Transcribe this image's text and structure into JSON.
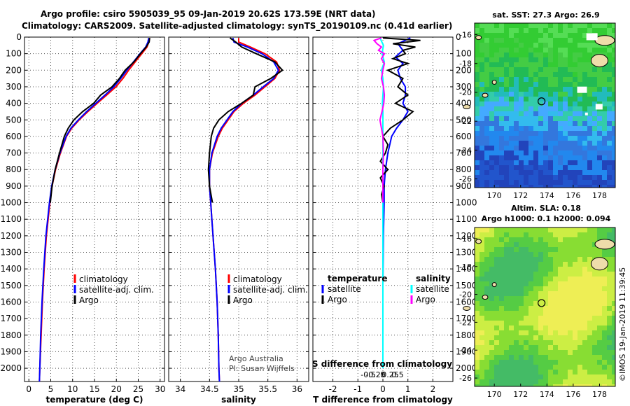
{
  "header": {
    "line1": "Argo profile: csiro 5905039_95 09-Jan-2019 20.62S 173.59E (NRT data)",
    "line2": "Climatology: CARS2009. Satellite-adjusted climatology: synTS_20190109.nc (0.41d earlier)"
  },
  "chart_data": [
    {
      "type": "line",
      "panel": "temperature",
      "xlabel": "temperature (deg C)",
      "ylabel": "depth",
      "xlim": [
        -1,
        31
      ],
      "ylim": [
        2080,
        0
      ],
      "xticks": [
        0,
        5,
        10,
        15,
        20,
        25,
        30
      ],
      "yticks": [
        0,
        100,
        200,
        300,
        400,
        500,
        600,
        700,
        800,
        900,
        1000,
        1100,
        1200,
        1300,
        1400,
        1500,
        1600,
        1700,
        1800,
        1900,
        2000
      ],
      "legend": "lower-right",
      "series": [
        {
          "name": "climatology",
          "color": "#ff0000",
          "depth": [
            5,
            30,
            60,
            100,
            150,
            200,
            250,
            300,
            350,
            400,
            450,
            500,
            550,
            600,
            700,
            800,
            900,
            1000,
            1200,
            1400,
            1600,
            1800,
            2000,
            2080
          ],
          "values": [
            27.6,
            27.4,
            27.0,
            25.8,
            24.3,
            22.8,
            21.5,
            19.9,
            17.8,
            15.6,
            13.5,
            11.5,
            9.8,
            8.6,
            7.2,
            6.1,
            5.3,
            4.8,
            4.0,
            3.5,
            3.1,
            2.8,
            2.5,
            2.4
          ]
        },
        {
          "name": "satellite-adj. clim.",
          "color": "#0000ff",
          "depth": [
            5,
            30,
            60,
            100,
            150,
            200,
            250,
            300,
            350,
            400,
            450,
            500,
            550,
            600,
            700,
            800,
            900,
            1000,
            1200,
            1400,
            1600,
            1800,
            2000,
            2080
          ],
          "values": [
            27.4,
            27.2,
            26.7,
            25.4,
            23.9,
            22.4,
            21.0,
            19.4,
            17.4,
            15.3,
            13.2,
            11.3,
            9.6,
            8.5,
            7.1,
            6.0,
            5.2,
            4.7,
            3.9,
            3.4,
            3.0,
            2.7,
            2.5,
            2.4
          ]
        },
        {
          "name": "Argo",
          "color": "#000000",
          "depth": [
            5,
            30,
            60,
            100,
            150,
            200,
            250,
            300,
            350,
            400,
            450,
            500,
            550,
            600,
            700,
            800,
            900,
            1000
          ],
          "values": [
            27.6,
            27.5,
            26.8,
            25.5,
            24.0,
            22.0,
            20.7,
            19.0,
            16.4,
            14.8,
            12.3,
            10.3,
            9.0,
            8.1,
            7.0,
            6.0,
            5.3,
            4.9
          ]
        }
      ],
      "legend_entries": [
        "climatology",
        "satellite-adj. clim.",
        "Argo"
      ]
    },
    {
      "type": "line",
      "panel": "salinity",
      "xlabel": "salinity",
      "xlim": [
        33.8,
        36.2
      ],
      "ylim": [
        2080,
        0
      ],
      "xticks": [
        34,
        34.5,
        35,
        35.5,
        36
      ],
      "xticklabels": [
        "34",
        "34.5",
        "35",
        "35.5",
        "36"
      ],
      "legend": "lower-right",
      "series": [
        {
          "name": "climatology",
          "color": "#ff0000",
          "depth": [
            5,
            30,
            60,
            100,
            150,
            200,
            250,
            300,
            350,
            400,
            450,
            500,
            550,
            600,
            700,
            800,
            900,
            1000,
            1200,
            1400,
            1600,
            1800,
            2000,
            2080
          ],
          "values": [
            35.0,
            35.0,
            35.2,
            35.45,
            35.65,
            35.7,
            35.62,
            35.45,
            35.28,
            35.08,
            34.92,
            34.82,
            34.72,
            34.65,
            34.55,
            34.5,
            34.5,
            34.52,
            34.56,
            34.6,
            34.63,
            34.65,
            34.66,
            34.67
          ]
        },
        {
          "name": "satellite-adj. clim.",
          "color": "#0000ff",
          "depth": [
            5,
            30,
            60,
            100,
            150,
            200,
            250,
            300,
            350,
            400,
            450,
            500,
            550,
            600,
            700,
            800,
            900,
            1000,
            1200,
            1400,
            1600,
            1800,
            2000,
            2080
          ],
          "values": [
            34.9,
            34.92,
            35.15,
            35.4,
            35.6,
            35.68,
            35.6,
            35.42,
            35.25,
            35.05,
            34.9,
            34.8,
            34.7,
            34.63,
            34.54,
            34.5,
            34.5,
            34.52,
            34.56,
            34.6,
            34.63,
            34.65,
            34.66,
            34.67
          ]
        },
        {
          "name": "Argo",
          "color": "#000000",
          "depth": [
            5,
            30,
            60,
            100,
            150,
            200,
            250,
            300,
            350,
            400,
            450,
            500,
            550,
            600,
            700,
            800,
            900,
            1000
          ],
          "values": [
            34.85,
            34.95,
            35.05,
            35.3,
            35.62,
            35.75,
            35.55,
            35.28,
            35.25,
            35.05,
            34.82,
            34.66,
            34.57,
            34.53,
            34.5,
            34.48,
            34.5,
            34.55
          ]
        }
      ],
      "legend_entries": [
        "climatology",
        "satellite-adj. clim.",
        "Argo"
      ],
      "credit": [
        "Argo Australia",
        "PI: Susan Wijffels"
      ]
    },
    {
      "type": "line",
      "panel": "differences",
      "xlabel": "T difference from climatology",
      "xlabel_top": "S difference from climatology",
      "xlim": [
        -2.8,
        2.8
      ],
      "ylim": [
        2080,
        0
      ],
      "xticks": [
        -2,
        -1,
        0,
        1,
        2
      ],
      "xticklabels": [
        "-2",
        "-1",
        "0",
        "1",
        "2"
      ],
      "sticks": [
        -0.5,
        -0.25,
        0,
        0.25,
        0.5
      ],
      "sticklabels": [
        "-0.5",
        "-0.25",
        "0",
        "0.25",
        "0.5"
      ],
      "legend_temperature_title": "temperature",
      "legend_salinity_title": "salinity",
      "series": [
        {
          "name": "T satellite",
          "group": "temperature",
          "color": "#0000ff",
          "depth": [
            5,
            40,
            80,
            120,
            160,
            200,
            250,
            300,
            350,
            400,
            450,
            500,
            550,
            600,
            700,
            800,
            900,
            1000,
            1200,
            1500,
            2000
          ],
          "values": [
            1.1,
            0.6,
            0.8,
            0.5,
            0.8,
            0.6,
            0.7,
            0.9,
            0.9,
            0.8,
            1.0,
            0.8,
            0.55,
            0.35,
            0.2,
            0.1,
            0.05,
            0.05,
            0.02,
            0.0,
            0.0
          ]
        },
        {
          "name": "T Argo",
          "group": "temperature",
          "color": "#000000",
          "depth": [
            5,
            20,
            40,
            60,
            80,
            100,
            130,
            160,
            200,
            250,
            300,
            350,
            400,
            450,
            500,
            550,
            600,
            650,
            700,
            750,
            800,
            850,
            900,
            950,
            1000,
            1100,
            1200
          ],
          "values": [
            0.0,
            1.5,
            0.4,
            1.3,
            0.8,
            0.9,
            0.4,
            1.0,
            0.2,
            0.8,
            0.6,
            1.0,
            0.5,
            1.2,
            0.8,
            0.3,
            0.0,
            0.2,
            0.1,
            -0.1,
            0.2,
            -0.1,
            0.05,
            -0.05,
            0.0,
            0.0,
            0.0
          ]
        },
        {
          "name": "S satellite",
          "group": "salinity",
          "color": "#00ffff",
          "depth": [
            5,
            50,
            100,
            150,
            200,
            250,
            300,
            350,
            400,
            450,
            500,
            600,
            700,
            800,
            1000,
            1500,
            2000
          ],
          "values": [
            -0.1,
            0.02,
            -0.03,
            0.05,
            -0.05,
            0.0,
            0.02,
            0.0,
            -0.02,
            0.0,
            0.0,
            0.0,
            0.0,
            0.0,
            0.0,
            0.0,
            0.0
          ]
        },
        {
          "name": "S Argo",
          "group": "salinity",
          "color": "#ff00ff",
          "depth": [
            5,
            20,
            40,
            60,
            80,
            100,
            130,
            160,
            200,
            250,
            300,
            350,
            400,
            450,
            500,
            550,
            600,
            700,
            800,
            900,
            1000
          ],
          "values": [
            -0.05,
            -0.3,
            -0.2,
            -0.05,
            -0.15,
            0.05,
            -0.05,
            0.05,
            0.0,
            -0.05,
            0.02,
            0.05,
            0.03,
            -0.03,
            -0.1,
            -0.05,
            0.0,
            0.02,
            0.0,
            0.0,
            0.0
          ]
        }
      ],
      "legend_left": [
        {
          "label": "satellite",
          "color": "#0000ff"
        },
        {
          "label": "Argo",
          "color": "#000000"
        }
      ],
      "legend_right": [
        {
          "label": "satellite",
          "color": "#00ffff"
        },
        {
          "label": "Argo",
          "color": "#ff00ff"
        }
      ]
    },
    {
      "type": "heatmap",
      "panel": "sst-map",
      "title": "sat. SST: 27.3 Argo: 26.9",
      "xlim": [
        168.5,
        179.2
      ],
      "ylim": [
        -26.6,
        -15.2
      ],
      "xticks": [
        170,
        172,
        174,
        176,
        178
      ],
      "yticks": [
        -16,
        -18,
        -20,
        -22,
        -24,
        -26
      ],
      "xticklabels": [
        "170",
        "172",
        "174",
        "176",
        "178"
      ],
      "yticklabels": [
        "-16",
        "-18",
        "-20",
        "-22",
        "-24",
        "-26"
      ],
      "float_position": [
        173.59,
        -20.62
      ]
    },
    {
      "type": "heatmap",
      "panel": "sla-map",
      "title": "Altim. SLA: 0.18",
      "subtitle": "Argo h1000: 0.1 h2000: 0.094",
      "xlim": [
        168.5,
        179.2
      ],
      "ylim": [
        -26.6,
        -15.2
      ],
      "xticks": [
        170,
        172,
        174,
        176,
        178
      ],
      "yticks": [
        -16,
        -18,
        -20,
        -22,
        -24,
        -26
      ],
      "xticklabels": [
        "170",
        "172",
        "174",
        "176",
        "178"
      ],
      "yticklabels": [
        "-16",
        "-18",
        "-20",
        "-22",
        "-24",
        "-26"
      ],
      "float_position": [
        173.59,
        -20.62
      ]
    }
  ],
  "stamp": "©IMOS 19-Jan-2019 11:39:45"
}
